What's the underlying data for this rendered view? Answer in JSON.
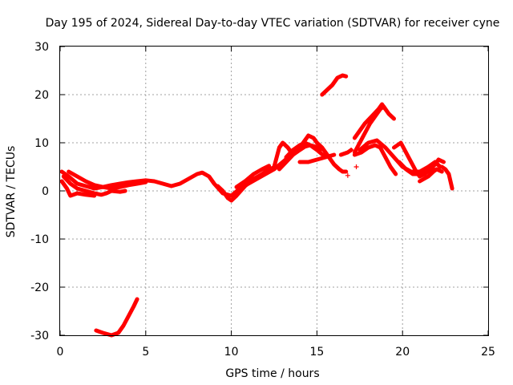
{
  "chart_data": {
    "type": "line",
    "title": "Day 195 of 2024, Sidereal Day-to-day VTEC variation (SDTVAR) for receiver cyne",
    "xlabel": "GPS time / hours",
    "ylabel": "SDTVAR / TECUs",
    "xlim": [
      0,
      25
    ],
    "ylim": [
      -30,
      30
    ],
    "xticks": [
      0,
      5,
      10,
      15,
      20,
      25
    ],
    "yticks": [
      -30,
      -20,
      -10,
      0,
      10,
      20,
      30
    ],
    "grid": true,
    "marker": "+",
    "color": "#ff0000",
    "series": [
      {
        "name": "track-1",
        "points": [
          [
            0.1,
            4
          ],
          [
            0.5,
            3
          ],
          [
            1.0,
            1.5
          ],
          [
            1.5,
            1
          ],
          [
            2.0,
            0.5
          ],
          [
            2.5,
            0.8
          ],
          [
            3.0,
            1.2
          ],
          [
            3.5,
            1.5
          ],
          [
            4.0,
            1.8
          ],
          [
            4.5,
            2
          ],
          [
            5.0,
            2.2
          ],
          [
            5.5,
            2
          ],
          [
            6.0,
            1.5
          ],
          [
            6.5,
            1
          ],
          [
            7.0,
            1.5
          ],
          [
            7.5,
            2.5
          ],
          [
            8.0,
            3.5
          ],
          [
            8.3,
            3.8
          ],
          [
            8.7,
            3
          ],
          [
            9.0,
            1.5
          ],
          [
            9.5,
            -0.5
          ],
          [
            10.0,
            -1
          ],
          [
            10.5,
            0.5
          ],
          [
            11.0,
            1.5
          ],
          [
            11.5,
            2.5
          ],
          [
            12.0,
            3.5
          ],
          [
            12.5,
            4.5
          ],
          [
            13.0,
            6
          ],
          [
            13.5,
            7.5
          ],
          [
            14.0,
            9
          ],
          [
            14.3,
            10
          ]
        ]
      },
      {
        "name": "track-2",
        "points": [
          [
            0.2,
            3
          ],
          [
            0.6,
            1.5
          ],
          [
            1.0,
            0.5
          ],
          [
            1.5,
            0
          ],
          [
            2.0,
            -0.5
          ],
          [
            2.4,
            -0.8
          ],
          [
            2.7,
            -0.5
          ],
          [
            3.0,
            0
          ],
          [
            3.5,
            -0.2
          ],
          [
            3.8,
            0
          ]
        ]
      },
      {
        "name": "track-3",
        "points": [
          [
            0.1,
            2
          ],
          [
            0.4,
            0.5
          ],
          [
            0.6,
            -1
          ],
          [
            1.0,
            -0.5
          ],
          [
            1.5,
            -0.8
          ],
          [
            2.0,
            -1
          ]
        ]
      },
      {
        "name": "track-4",
        "points": [
          [
            0.5,
            4
          ],
          [
            1.0,
            3
          ],
          [
            1.5,
            2
          ],
          [
            2.0,
            1.2
          ],
          [
            2.5,
            0.8
          ],
          [
            3.0,
            0.5
          ],
          [
            3.5,
            0.8
          ],
          [
            4.0,
            1.2
          ],
          [
            4.5,
            1.5
          ],
          [
            5.0,
            1.8
          ]
        ]
      },
      {
        "name": "track-5",
        "points": [
          [
            9.2,
            1
          ],
          [
            9.5,
            0
          ],
          [
            9.8,
            -1.5
          ],
          [
            10.0,
            -2
          ],
          [
            10.3,
            -1
          ],
          [
            10.8,
            1
          ],
          [
            11.3,
            2.5
          ],
          [
            11.8,
            3.5
          ],
          [
            12.2,
            4.5
          ],
          [
            12.6,
            5
          ]
        ]
      },
      {
        "name": "track-6",
        "points": [
          [
            10.3,
            0.8
          ],
          [
            10.8,
            2
          ],
          [
            11.3,
            3.5
          ],
          [
            11.8,
            4.5
          ],
          [
            12.2,
            5.2
          ]
        ]
      },
      {
        "name": "track-7",
        "points": [
          [
            12.5,
            5
          ],
          [
            12.8,
            9
          ],
          [
            13.0,
            10
          ],
          [
            13.3,
            9
          ],
          [
            13.5,
            8
          ],
          [
            13.8,
            8.5
          ],
          [
            14.0,
            9
          ],
          [
            14.3,
            10.5
          ],
          [
            14.5,
            11.5
          ],
          [
            14.8,
            11
          ],
          [
            15.0,
            10
          ],
          [
            15.3,
            9
          ],
          [
            15.5,
            8
          ],
          [
            15.8,
            6.5
          ],
          [
            16.0,
            5.5
          ],
          [
            16.3,
            4.5
          ],
          [
            16.5,
            4
          ],
          [
            16.7,
            4
          ]
        ]
      },
      {
        "name": "track-8",
        "points": [
          [
            12.8,
            4.5
          ],
          [
            13.2,
            6
          ],
          [
            13.6,
            7.5
          ],
          [
            14.0,
            8.5
          ],
          [
            14.3,
            9.2
          ],
          [
            14.6,
            9.5
          ],
          [
            14.9,
            9.2
          ],
          [
            15.2,
            8.5
          ]
        ]
      },
      {
        "name": "track-9",
        "points": [
          [
            13.2,
            7
          ],
          [
            13.6,
            8.5
          ],
          [
            14.0,
            9.5
          ],
          [
            14.3,
            10
          ],
          [
            14.6,
            9.5
          ],
          [
            15.0,
            8.5
          ],
          [
            15.5,
            7
          ]
        ]
      },
      {
        "name": "track-10",
        "points": [
          [
            14.0,
            6
          ],
          [
            14.5,
            6
          ],
          [
            15.0,
            6.5
          ],
          [
            15.5,
            7
          ],
          [
            16.0,
            7.5
          ]
        ]
      },
      {
        "name": "track-11",
        "points": [
          [
            15.3,
            20
          ],
          [
            15.6,
            21
          ],
          [
            15.9,
            22
          ],
          [
            16.2,
            23.5
          ],
          [
            16.5,
            24
          ],
          [
            16.7,
            23.8
          ]
        ]
      },
      {
        "name": "track-12",
        "points": [
          [
            16.4,
            7.5
          ],
          [
            16.8,
            8
          ],
          [
            17.0,
            8.5
          ]
        ]
      },
      {
        "name": "track-13",
        "points": [
          [
            16.8,
            3.2
          ]
        ]
      },
      {
        "name": "track-14",
        "points": [
          [
            17.3,
            5
          ]
        ]
      },
      {
        "name": "track-15",
        "points": [
          [
            17.2,
            8
          ],
          [
            17.5,
            10
          ],
          [
            17.8,
            12
          ],
          [
            18.1,
            14
          ],
          [
            18.4,
            15.5
          ],
          [
            18.7,
            17
          ],
          [
            18.9,
            17.5
          ],
          [
            19.2,
            16
          ],
          [
            19.5,
            15
          ]
        ]
      },
      {
        "name": "track-16",
        "points": [
          [
            17.2,
            11
          ],
          [
            17.5,
            12.5
          ],
          [
            17.8,
            14
          ],
          [
            18.2,
            15.5
          ],
          [
            18.6,
            17
          ],
          [
            18.8,
            18
          ],
          [
            19.0,
            17
          ]
        ]
      },
      {
        "name": "track-17",
        "points": [
          [
            17.2,
            7.5
          ],
          [
            17.6,
            8
          ],
          [
            18.0,
            9
          ],
          [
            18.4,
            9.5
          ],
          [
            18.7,
            9
          ],
          [
            19.0,
            7
          ],
          [
            19.3,
            5
          ],
          [
            19.6,
            3.5
          ]
        ]
      },
      {
        "name": "track-18",
        "points": [
          [
            17.5,
            8.5
          ],
          [
            18.0,
            10
          ],
          [
            18.5,
            10.5
          ],
          [
            19.0,
            9
          ],
          [
            19.5,
            7
          ],
          [
            20.0,
            5
          ],
          [
            20.5,
            4
          ],
          [
            21.0,
            4
          ],
          [
            21.5,
            5
          ],
          [
            21.9,
            6
          ],
          [
            22.2,
            5
          ]
        ]
      },
      {
        "name": "track-19",
        "points": [
          [
            19.5,
            9
          ],
          [
            19.9,
            10
          ],
          [
            20.2,
            8
          ],
          [
            20.5,
            6
          ],
          [
            20.8,
            4
          ],
          [
            21.0,
            3
          ],
          [
            21.3,
            3.5
          ],
          [
            21.6,
            4.5
          ],
          [
            21.9,
            5.5
          ],
          [
            22.1,
            6.5
          ],
          [
            22.4,
            6
          ]
        ]
      },
      {
        "name": "track-20",
        "points": [
          [
            19.8,
            6
          ],
          [
            20.2,
            4.5
          ],
          [
            20.6,
            3.5
          ],
          [
            21.0,
            3.5
          ],
          [
            21.5,
            4
          ],
          [
            22.0,
            4.5
          ]
        ]
      },
      {
        "name": "track-21",
        "points": [
          [
            21.0,
            2
          ],
          [
            21.5,
            3
          ],
          [
            21.8,
            4
          ],
          [
            22.0,
            4.5
          ],
          [
            22.3,
            4
          ]
        ]
      },
      {
        "name": "track-22",
        "points": [
          [
            22.3,
            5
          ],
          [
            22.5,
            4.5
          ],
          [
            22.7,
            3.5
          ],
          [
            22.8,
            2
          ],
          [
            22.9,
            0.5
          ]
        ]
      },
      {
        "name": "track-23",
        "points": [
          [
            2.1,
            -29
          ],
          [
            2.5,
            -29.5
          ],
          [
            3.0,
            -30
          ],
          [
            3.4,
            -29.5
          ],
          [
            3.7,
            -28
          ],
          [
            4.0,
            -26
          ],
          [
            4.3,
            -24
          ],
          [
            4.5,
            -22.5
          ]
        ]
      }
    ]
  }
}
